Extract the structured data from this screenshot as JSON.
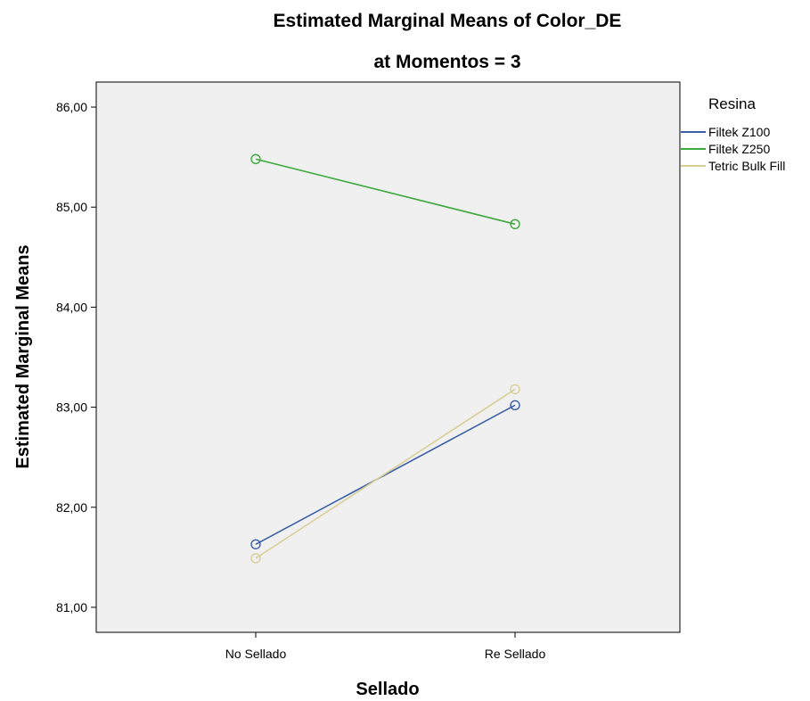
{
  "chart_data": {
    "type": "line",
    "title": "Estimated Marginal Means of Color_DE",
    "subtitle": "at Momentos = 3",
    "xlabel": "Sellado",
    "ylabel": "Estimated Marginal Means",
    "categories": [
      "No Sellado",
      "Re Sellado"
    ],
    "ylim": [
      80.75,
      86.25
    ],
    "yticks": [
      81,
      82,
      83,
      84,
      85,
      86
    ],
    "ytick_labels": [
      "81,00",
      "82,00",
      "83,00",
      "84,00",
      "85,00",
      "86,00"
    ],
    "grid": false,
    "plot_background": "#f0f0f0",
    "legend": {
      "title": "Resina",
      "position": "right"
    },
    "series": [
      {
        "name": "Filtek Z100",
        "values": [
          81.63,
          83.02
        ],
        "color": "#3b5fa6",
        "marker": "circle"
      },
      {
        "name": "Filtek Z250",
        "values": [
          85.48,
          84.83
        ],
        "color": "#3caa3c",
        "marker": "circle"
      },
      {
        "name": "Tetric Bulk Fill",
        "values": [
          81.49,
          83.18
        ],
        "color": "#d8cf96",
        "marker": "circle"
      }
    ]
  }
}
